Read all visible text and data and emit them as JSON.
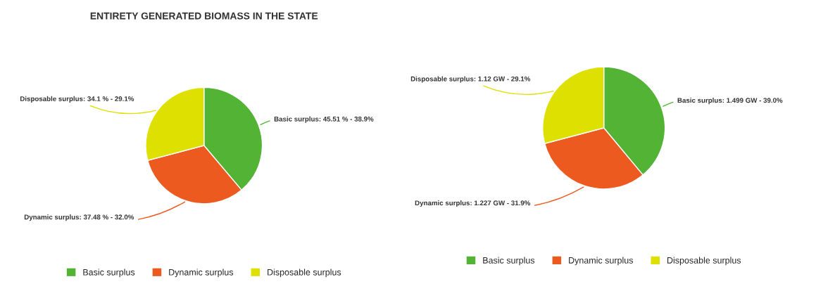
{
  "chart_data": [
    {
      "type": "pie",
      "title": "ENTIRETY GENERATED BIOMASS IN THE STATE",
      "categories": [
        "Basic surplus",
        "Dynamic surplus",
        "Disposable surplus"
      ],
      "values": [
        45.51,
        37.48,
        34.1
      ],
      "value_labels": [
        "Basic surplus: 45.51 % - 38.9%",
        "Dynamic surplus: 37.48 % - 32.0%",
        "Disposable surplus: 34.1 % - 29.1%"
      ],
      "colors": [
        "#52b335",
        "#ec5a1f",
        "#dde000"
      ],
      "legend": "bottom"
    },
    {
      "type": "pie",
      "categories": [
        "Basic surplus",
        "Dynamic surplus",
        "Disposable surplus"
      ],
      "values": [
        1.499,
        1.227,
        1.12
      ],
      "value_labels": [
        "Basic surplus: 1.499 GW - 39.0%",
        "Dynamic surplus: 1.227 GW - 31.9%",
        "Disposable surplus: 1.12 GW - 29.1%"
      ],
      "colors": [
        "#52b335",
        "#ec5a1f",
        "#dde000"
      ],
      "legend": "bottom"
    }
  ]
}
